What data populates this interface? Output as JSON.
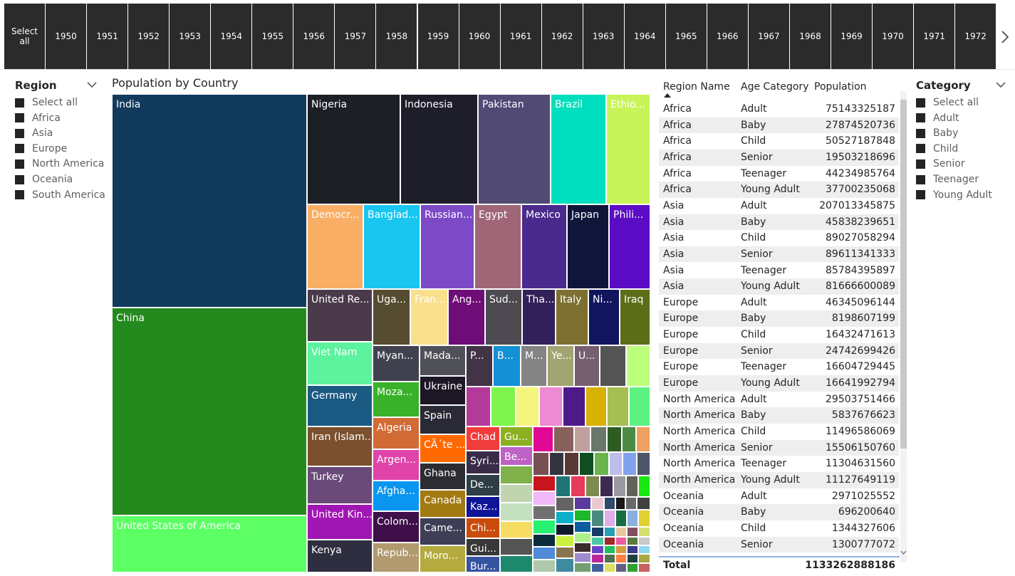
{
  "years": {
    "select_all": "Select all",
    "items": [
      "1950",
      "1951",
      "1952",
      "1953",
      "1954",
      "1955",
      "1956",
      "1957",
      "1958",
      "1959",
      "1960",
      "1961",
      "1962",
      "1963",
      "1964",
      "1965",
      "1966",
      "1967",
      "1968",
      "1969",
      "1970",
      "1971",
      "1972"
    ]
  },
  "region_slicer": {
    "title": "Region",
    "items": [
      "Select all",
      "Africa",
      "Asia",
      "Europe",
      "North America",
      "Oceania",
      "South America"
    ]
  },
  "category_slicer": {
    "title": "Category",
    "items": [
      "Select all",
      "Adult",
      "Baby",
      "Child",
      "Senior",
      "Teenager",
      "Young Adult"
    ]
  },
  "treemap": {
    "title": "Population by Country",
    "labels": {
      "india": "India",
      "china": "China",
      "usa": "United States of America",
      "nigeria": "Nigeria",
      "indonesia": "Indonesia",
      "pakistan": "Pakistan",
      "brazil": "Brazil",
      "ethiopia": "Ethio...",
      "drc": "Democr...",
      "bangladesh": "Banglad...",
      "russia": "Russian...",
      "egypt": "Egypt",
      "mexico": "Mexico",
      "japan": "Japan",
      "philippines": "Phili...",
      "tanzania": "United Re...",
      "uganda": "Uga...",
      "france": "Fran...",
      "angola": "Ang...",
      "sudan": "Sud...",
      "thailand": "Tha...",
      "italy": "Italy",
      "niger": "Ni...",
      "iraq": "Iraq",
      "vietnam": "Viet Nam",
      "myanmar": "Myan...",
      "madagascar": "Mada...",
      "p": "P...",
      "b": "B...",
      "m": "M...",
      "ye": "Ye...",
      "u": "U...",
      "germany": "Germany",
      "mozambique": "Moza...",
      "ukraine": "Ukraine",
      "spain": "Spain",
      "iran": "Iran (Islam...",
      "algeria": "Algeria",
      "cote": "CÃ´te ...",
      "chad": "Chad",
      "gu": "Gu...",
      "be": "Be...",
      "turkey": "Turkey",
      "argentina": "Argen...",
      "ghana": "Ghana",
      "syria": "Syri...",
      "uk": "United Kin...",
      "afghanistan": "Afgha...",
      "canada": "Canada",
      "de": "De...",
      "kenya": "Kenya",
      "colombia": "Colom...",
      "cameroon": "Came...",
      "kazakhstan": "Kaz...",
      "chile": "Chi...",
      "republic": "Repub...",
      "morocco": "Moro...",
      "guinea": "Gui...",
      "burkina": "Bur..."
    }
  },
  "table": {
    "headers": {
      "region": "Region Name",
      "age": "Age Category",
      "pop": "Population"
    },
    "rows": [
      [
        "Africa",
        "Adult",
        "75143325187"
      ],
      [
        "Africa",
        "Baby",
        "27874520736"
      ],
      [
        "Africa",
        "Child",
        "50527187848"
      ],
      [
        "Africa",
        "Senior",
        "19503218696"
      ],
      [
        "Africa",
        "Teenager",
        "44234985764"
      ],
      [
        "Africa",
        "Young Adult",
        "37700235068"
      ],
      [
        "Asia",
        "Adult",
        "207013345875"
      ],
      [
        "Asia",
        "Baby",
        "45838239651"
      ],
      [
        "Asia",
        "Child",
        "89027058294"
      ],
      [
        "Asia",
        "Senior",
        "89611341333"
      ],
      [
        "Asia",
        "Teenager",
        "85784395897"
      ],
      [
        "Asia",
        "Young Adult",
        "81666600089"
      ],
      [
        "Europe",
        "Adult",
        "46345096144"
      ],
      [
        "Europe",
        "Baby",
        "8198607199"
      ],
      [
        "Europe",
        "Child",
        "16432471613"
      ],
      [
        "Europe",
        "Senior",
        "24742699426"
      ],
      [
        "Europe",
        "Teenager",
        "16604729445"
      ],
      [
        "Europe",
        "Young Adult",
        "16641992794"
      ],
      [
        "North America",
        "Adult",
        "29503751466"
      ],
      [
        "North America",
        "Baby",
        "5837676623"
      ],
      [
        "North America",
        "Child",
        "11496586069"
      ],
      [
        "North America",
        "Senior",
        "15506150760"
      ],
      [
        "North America",
        "Teenager",
        "11304631560"
      ],
      [
        "North America",
        "Young Adult",
        "11127649119"
      ],
      [
        "Oceania",
        "Adult",
        "2971025552"
      ],
      [
        "Oceania",
        "Baby",
        "696200640"
      ],
      [
        "Oceania",
        "Child",
        "1344327606"
      ],
      [
        "Oceania",
        "Senior",
        "1300777072"
      ]
    ],
    "total_label": "Total",
    "total_value": "1133262888186"
  },
  "colors": {
    "year_button": "#2b2b2b",
    "checkbox": "#252423",
    "total_line": "#8fb1e0"
  }
}
